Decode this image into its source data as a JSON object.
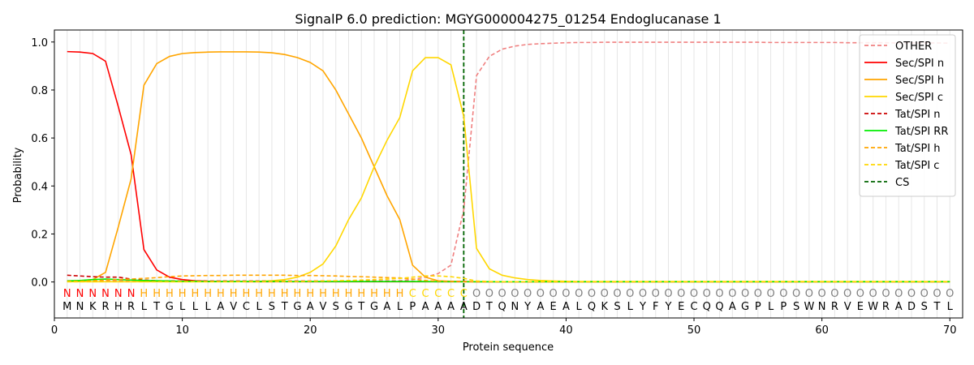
{
  "chart_data": {
    "type": "line",
    "title": "SignalP 6.0 prediction: MGYG000004275_01254 Endoglucanase 1",
    "xlabel": "Protein sequence",
    "ylabel": "Probability",
    "xlim": [
      0,
      71
    ],
    "ylim": [
      -0.15,
      1.05
    ],
    "x_ticks": [
      0,
      10,
      20,
      30,
      40,
      50,
      60,
      70
    ],
    "x_tick_labels": [
      "0",
      "10",
      "20",
      "30",
      "40",
      "50",
      "60",
      "70"
    ],
    "y_ticks": [
      0.0,
      0.2,
      0.4,
      0.6,
      0.8,
      1.0
    ],
    "y_tick_labels": [
      "0.0",
      "0.2",
      "0.4",
      "0.6",
      "0.8",
      "1.0"
    ],
    "grid": "vertical lines at each residue",
    "legend_position": "top-right",
    "sequence": [
      "M",
      "N",
      "K",
      "R",
      "H",
      "R",
      "L",
      "T",
      "G",
      "L",
      "L",
      "L",
      "A",
      "V",
      "C",
      "L",
      "S",
      "T",
      "G",
      "A",
      "V",
      "S",
      "G",
      "T",
      "G",
      "A",
      "L",
      "P",
      "A",
      "A",
      "A",
      "A",
      "D",
      "T",
      "Q",
      "N",
      "Y",
      "A",
      "E",
      "A",
      "L",
      "Q",
      "K",
      "S",
      "L",
      "Y",
      "F",
      "Y",
      "E",
      "C",
      "Q",
      "Q",
      "A",
      "G",
      "P",
      "L",
      "P",
      "S",
      "W",
      "N",
      "R",
      "V",
      "E",
      "W",
      "R",
      "A",
      "D",
      "S",
      "T",
      "L"
    ],
    "region_labels": [
      "N",
      "N",
      "N",
      "N",
      "N",
      "N",
      "H",
      "H",
      "H",
      "H",
      "H",
      "H",
      "H",
      "H",
      "H",
      "H",
      "H",
      "H",
      "H",
      "H",
      "H",
      "H",
      "H",
      "H",
      "H",
      "H",
      "H",
      "C",
      "C",
      "C",
      "C",
      "C",
      "O",
      "O",
      "O",
      "O",
      "O",
      "O",
      "O",
      "O",
      "O",
      "O",
      "O",
      "O",
      "O",
      "O",
      "O",
      "O",
      "O",
      "O",
      "O",
      "O",
      "O",
      "O",
      "O",
      "O",
      "O",
      "O",
      "O",
      "O",
      "O",
      "O",
      "O",
      "O",
      "O",
      "O",
      "O",
      "O",
      "O",
      "O"
    ],
    "region_colors": {
      "N": "#ff0000",
      "H": "#ffa500",
      "C": "#ffd700",
      "O": "#808080"
    },
    "cleavage_site": 32,
    "series": [
      {
        "name": "OTHER",
        "color": "#f08080",
        "dash": "dashed",
        "values": [
          0.005,
          0.005,
          0.005,
          0.005,
          0.005,
          0.005,
          0.005,
          0.005,
          0.005,
          0.005,
          0.005,
          0.005,
          0.005,
          0.005,
          0.005,
          0.005,
          0.005,
          0.005,
          0.005,
          0.005,
          0.005,
          0.005,
          0.005,
          0.005,
          0.005,
          0.005,
          0.005,
          0.01,
          0.02,
          0.035,
          0.07,
          0.3,
          0.86,
          0.94,
          0.97,
          0.983,
          0.99,
          0.993,
          0.995,
          0.997,
          0.998,
          0.998,
          0.999,
          0.999,
          0.999,
          0.999,
          0.999,
          0.999,
          0.999,
          0.999,
          0.999,
          0.999,
          0.999,
          0.999,
          0.999,
          0.998,
          0.998,
          0.998,
          0.998,
          0.998,
          0.998,
          0.997,
          0.997,
          0.997,
          0.997,
          0.996,
          0.996,
          0.996,
          0.996,
          0.995
        ]
      },
      {
        "name": "Sec/SPI n",
        "color": "#ff0000",
        "dash": "solid",
        "values": [
          0.96,
          0.958,
          0.952,
          0.92,
          0.73,
          0.53,
          0.135,
          0.05,
          0.02,
          0.01,
          0.005,
          0.003,
          0.002,
          0.002,
          0.001,
          0.001,
          0.001,
          0.001,
          0.001,
          0.001,
          0.001,
          0.001,
          0.001,
          0.001,
          0.001,
          0.001,
          0.001,
          0.001,
          0.001,
          0.001,
          0.001,
          0.001,
          0.001,
          0.001,
          0.001,
          0.001,
          0.001,
          0.001,
          0.001,
          0.001,
          0.001,
          0.001,
          0.001,
          0.001,
          0.001,
          0.001,
          0.001,
          0.001,
          0.001,
          0.001,
          0.001,
          0.001,
          0.001,
          0.001,
          0.001,
          0.001,
          0.001,
          0.001,
          0.001,
          0.001,
          0.001,
          0.001,
          0.001,
          0.001,
          0.001,
          0.001,
          0.001,
          0.001,
          0.001,
          0.001
        ]
      },
      {
        "name": "Sec/SPI h",
        "color": "#ffa500",
        "dash": "solid",
        "values": [
          0.005,
          0.005,
          0.01,
          0.04,
          0.23,
          0.43,
          0.82,
          0.91,
          0.94,
          0.952,
          0.956,
          0.958,
          0.959,
          0.959,
          0.959,
          0.958,
          0.955,
          0.948,
          0.935,
          0.915,
          0.88,
          0.8,
          0.7,
          0.6,
          0.48,
          0.36,
          0.26,
          0.07,
          0.02,
          0.005,
          0.003,
          0.002,
          0.001,
          0.001,
          0.001,
          0.001,
          0.001,
          0.001,
          0.001,
          0.001,
          0.001,
          0.001,
          0.001,
          0.001,
          0.001,
          0.001,
          0.001,
          0.001,
          0.001,
          0.001,
          0.001,
          0.001,
          0.001,
          0.001,
          0.001,
          0.001,
          0.001,
          0.001,
          0.001,
          0.001,
          0.001,
          0.001,
          0.001,
          0.001,
          0.001,
          0.001,
          0.001,
          0.001,
          0.001,
          0.001
        ]
      },
      {
        "name": "Sec/SPI c",
        "color": "#ffd700",
        "dash": "solid",
        "values": [
          0.001,
          0.001,
          0.001,
          0.001,
          0.001,
          0.001,
          0.001,
          0.001,
          0.001,
          0.001,
          0.001,
          0.001,
          0.001,
          0.001,
          0.002,
          0.003,
          0.005,
          0.01,
          0.02,
          0.04,
          0.075,
          0.15,
          0.26,
          0.35,
          0.48,
          0.59,
          0.685,
          0.88,
          0.935,
          0.935,
          0.905,
          0.69,
          0.14,
          0.055,
          0.028,
          0.017,
          0.01,
          0.006,
          0.004,
          0.003,
          0.002,
          0.002,
          0.002,
          0.002,
          0.002,
          0.002,
          0.002,
          0.002,
          0.002,
          0.002,
          0.002,
          0.002,
          0.002,
          0.002,
          0.002,
          0.002,
          0.002,
          0.002,
          0.002,
          0.002,
          0.002,
          0.002,
          0.002,
          0.002,
          0.002,
          0.002,
          0.002,
          0.002,
          0.002,
          0.002
        ]
      },
      {
        "name": "Tat/SPI n",
        "color": "#cc0000",
        "dash": "dashed",
        "values": [
          0.028,
          0.025,
          0.022,
          0.02,
          0.02,
          0.012,
          0.008,
          0.005,
          0.004,
          0.003,
          0.002,
          0.002,
          0.002,
          0.002,
          0.002,
          0.002,
          0.002,
          0.002,
          0.002,
          0.002,
          0.002,
          0.002,
          0.002,
          0.002,
          0.002,
          0.002,
          0.002,
          0.002,
          0.002,
          0.002,
          0.002,
          0.002,
          0.001,
          0.001,
          0.001,
          0.001,
          0.001,
          0.001,
          0.001,
          0.001,
          0.001,
          0.001,
          0.001,
          0.001,
          0.001,
          0.001,
          0.001,
          0.001,
          0.001,
          0.001,
          0.001,
          0.001,
          0.001,
          0.001,
          0.001,
          0.001,
          0.001,
          0.001,
          0.001,
          0.001,
          0.001,
          0.001,
          0.001,
          0.001,
          0.001,
          0.001,
          0.001,
          0.001,
          0.001,
          0.001
        ]
      },
      {
        "name": "Tat/SPI RR",
        "color": "#00ee00",
        "dash": "solid",
        "values": [
          0.004,
          0.006,
          0.01,
          0.012,
          0.01,
          0.008,
          0.006,
          0.005,
          0.004,
          0.003,
          0.003,
          0.002,
          0.002,
          0.002,
          0.002,
          0.002,
          0.002,
          0.002,
          0.002,
          0.002,
          0.002,
          0.002,
          0.002,
          0.002,
          0.002,
          0.002,
          0.002,
          0.002,
          0.002,
          0.001,
          0.001,
          0.001,
          0.001,
          0.001,
          0.001,
          0.001,
          0.001,
          0.001,
          0.001,
          0.001,
          0.001,
          0.001,
          0.001,
          0.001,
          0.001,
          0.001,
          0.001,
          0.001,
          0.001,
          0.001,
          0.001,
          0.001,
          0.001,
          0.001,
          0.001,
          0.001,
          0.001,
          0.001,
          0.001,
          0.001,
          0.001,
          0.001,
          0.001,
          0.001,
          0.001,
          0.001,
          0.001,
          0.001,
          0.001,
          0.001
        ]
      },
      {
        "name": "Tat/SPI h",
        "color": "#ffa500",
        "dash": "dashed",
        "values": [
          0.002,
          0.003,
          0.005,
          0.008,
          0.01,
          0.012,
          0.015,
          0.018,
          0.022,
          0.025,
          0.026,
          0.027,
          0.027,
          0.028,
          0.028,
          0.028,
          0.028,
          0.028,
          0.027,
          0.027,
          0.026,
          0.025,
          0.023,
          0.022,
          0.02,
          0.018,
          0.017,
          0.012,
          0.006,
          0.003,
          0.002,
          0.001,
          0.001,
          0.001,
          0.001,
          0.001,
          0.001,
          0.001,
          0.001,
          0.001,
          0.001,
          0.001,
          0.001,
          0.001,
          0.001,
          0.001,
          0.001,
          0.001,
          0.001,
          0.001,
          0.001,
          0.001,
          0.001,
          0.001,
          0.001,
          0.001,
          0.001,
          0.001,
          0.001,
          0.001,
          0.001,
          0.001,
          0.001,
          0.001,
          0.001,
          0.001,
          0.001,
          0.001,
          0.001,
          0.001
        ]
      },
      {
        "name": "Tat/SPI c",
        "color": "#ffd700",
        "dash": "dashed",
        "values": [
          0.001,
          0.001,
          0.001,
          0.001,
          0.001,
          0.001,
          0.001,
          0.001,
          0.001,
          0.001,
          0.001,
          0.001,
          0.001,
          0.001,
          0.001,
          0.001,
          0.001,
          0.002,
          0.002,
          0.003,
          0.004,
          0.005,
          0.006,
          0.008,
          0.01,
          0.012,
          0.015,
          0.02,
          0.025,
          0.025,
          0.022,
          0.015,
          0.004,
          0.002,
          0.001,
          0.001,
          0.001,
          0.001,
          0.001,
          0.001,
          0.001,
          0.001,
          0.001,
          0.001,
          0.001,
          0.001,
          0.001,
          0.001,
          0.001,
          0.001,
          0.001,
          0.001,
          0.001,
          0.001,
          0.001,
          0.001,
          0.001,
          0.001,
          0.001,
          0.001,
          0.001,
          0.001,
          0.001,
          0.001,
          0.001,
          0.001,
          0.001,
          0.001,
          0.001,
          0.001
        ]
      }
    ],
    "cs_legend": {
      "name": "CS",
      "color": "#006400",
      "dash": "dashed"
    }
  }
}
